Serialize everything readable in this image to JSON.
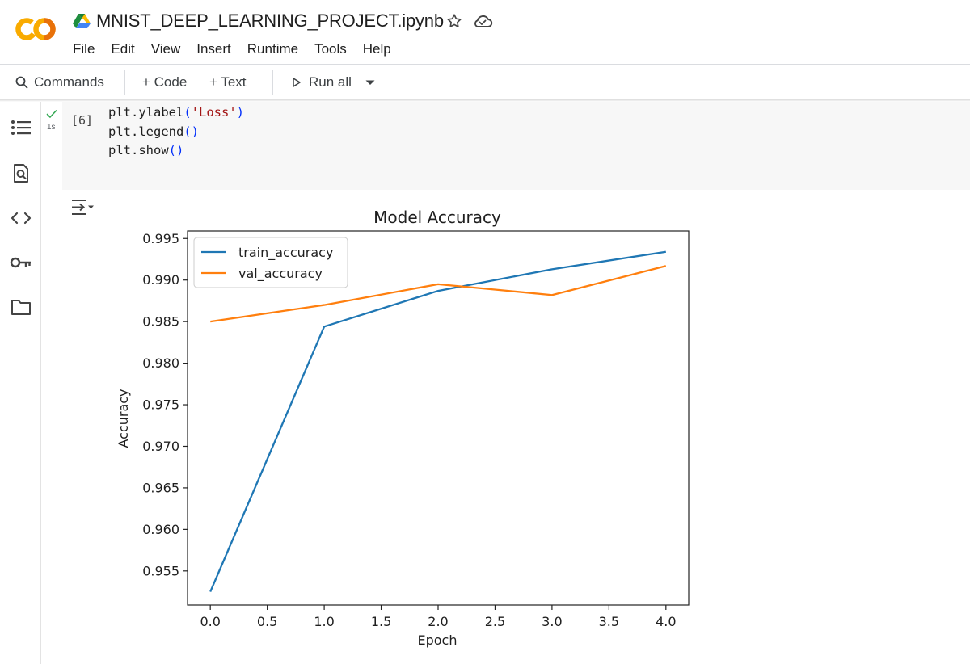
{
  "header": {
    "logo_text": "CO",
    "title": "MNIST_DEEP_LEARNING_PROJECT.ipynb",
    "menu": [
      "File",
      "Edit",
      "View",
      "Insert",
      "Runtime",
      "Tools",
      "Help"
    ]
  },
  "toolbar": {
    "commands_label": "Commands",
    "code_label": "+ Code",
    "text_label": "+ Text",
    "run_all_label": "Run all"
  },
  "sidebar": {
    "icons": [
      "table-of-contents-icon",
      "find-replace-icon",
      "code-snippets-icon",
      "secrets-key-icon",
      "files-folder-icon"
    ]
  },
  "cell": {
    "exec_count": "[6]",
    "exec_time": "1s",
    "status": "success",
    "code_lines": [
      [
        {
          "t": "plt.ylabel",
          "c": ""
        },
        {
          "t": "(",
          "c": "par"
        },
        {
          "t": "'Loss'",
          "c": "str"
        },
        {
          "t": ")",
          "c": "par"
        }
      ],
      [
        {
          "t": "plt.legend",
          "c": ""
        },
        {
          "t": "()",
          "c": "par"
        }
      ],
      [
        {
          "t": "plt.show",
          "c": ""
        },
        {
          "t": "()",
          "c": "par"
        }
      ]
    ]
  },
  "colors": {
    "train": "#1f77b4",
    "val": "#ff7f0e",
    "logo_orange": "#F9AB00",
    "logo_dark": "#E8710A",
    "check": "#34a853"
  },
  "chart_data": {
    "type": "line",
    "title": "Model Accuracy",
    "xlabel": "Epoch",
    "ylabel": "Accuracy",
    "x": [
      0,
      1,
      2,
      3,
      4
    ],
    "xticks": [
      "0.0",
      "0.5",
      "1.0",
      "1.5",
      "2.0",
      "2.5",
      "3.0",
      "3.5",
      "4.0"
    ],
    "yticks": [
      "0.955",
      "0.960",
      "0.965",
      "0.970",
      "0.975",
      "0.980",
      "0.985",
      "0.990",
      "0.995"
    ],
    "xlim": [
      -0.2,
      4.2
    ],
    "ylim": [
      0.9509,
      0.9959
    ],
    "legend_position": "upper-left",
    "grid": false,
    "series": [
      {
        "name": "train_accuracy",
        "values": [
          0.9525,
          0.9844,
          0.9887,
          0.9913,
          0.9934
        ]
      },
      {
        "name": "val_accuracy",
        "values": [
          0.985,
          0.987,
          0.9895,
          0.9882,
          0.9917
        ]
      }
    ]
  }
}
